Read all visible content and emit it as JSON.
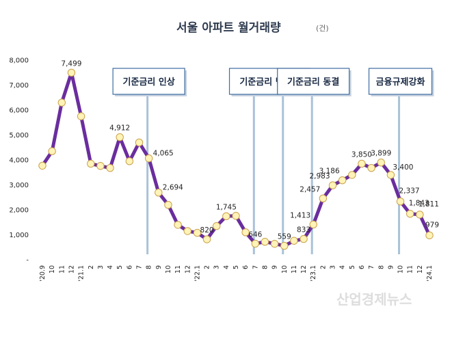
{
  "chart_data": {
    "type": "line",
    "title": "서울 아파트 월거래량",
    "unit": "(건)",
    "ylim": [
      0,
      8000
    ],
    "yticks": [
      "-",
      "1,000",
      "2,000",
      "3,000",
      "4,000",
      "5,000",
      "6,000",
      "7,000",
      "8,000"
    ],
    "x": [
      "'20.9",
      "10",
      "11",
      "12",
      "'21.1",
      "2",
      "3",
      "4",
      "5",
      "6",
      "7",
      "8",
      "9",
      "10",
      "11",
      "12",
      "'22.1",
      "2",
      "3",
      "4",
      "5",
      "6",
      "7",
      "8",
      "9",
      "10",
      "11",
      "12",
      "'23.1",
      "2",
      "3",
      "4",
      "5",
      "6",
      "7",
      "8",
      "9",
      "10",
      "11",
      "12",
      "'24.1"
    ],
    "values": [
      3770,
      4350,
      6300,
      7499,
      5750,
      3850,
      3760,
      3680,
      4912,
      3950,
      4700,
      4065,
      2694,
      2200,
      1400,
      1150,
      1080,
      820,
      1350,
      1745,
      1760,
      1100,
      646,
      720,
      640,
      559,
      760,
      833,
      1413,
      2457,
      2983,
      3186,
      3400,
      3850,
      3680,
      3899,
      3400,
      2337,
      1843,
      1811,
      979
    ],
    "data_labels": [
      {
        "index": 3,
        "text": "7,499"
      },
      {
        "index": 8,
        "text": "4,912"
      },
      {
        "index": 11,
        "text": "4,065"
      },
      {
        "index": 12,
        "text": "2,694"
      },
      {
        "index": 17,
        "text": "820"
      },
      {
        "index": 19,
        "text": "1,745"
      },
      {
        "index": 22,
        "text": "646"
      },
      {
        "index": 25,
        "text": "559"
      },
      {
        "index": 27,
        "text": "833"
      },
      {
        "index": 28,
        "text": "1,413"
      },
      {
        "index": 29,
        "text": "2,457"
      },
      {
        "index": 30,
        "text": "2,983"
      },
      {
        "index": 31,
        "text": "3,186"
      },
      {
        "index": 33,
        "text": "3,850"
      },
      {
        "index": 35,
        "text": "3,899"
      },
      {
        "index": 36,
        "text": "3,400"
      },
      {
        "index": 37,
        "text": "2,337"
      },
      {
        "index": 38,
        "text": "1,843"
      },
      {
        "index": 39,
        "text": "1,811"
      },
      {
        "index": 40,
        "text": "979"
      }
    ],
    "annotations": [
      {
        "name": "rate-hike",
        "text": "기준금리 인상",
        "index": 11
      },
      {
        "name": "rate-big-step",
        "text": "기준금리 빅스텝",
        "index": 22,
        "index2": 25
      },
      {
        "name": "rate-freeze",
        "text": "기준금리 동결",
        "index": 28
      },
      {
        "name": "loan-tightening",
        "text": "금융규제강화",
        "index": 37
      }
    ],
    "line_color": "#6a2d9e",
    "marker_color": "#fff3b8",
    "marker_stroke": "#c9a04a",
    "annotation_line_color": "#a9c2d8",
    "annotation_border_color": "#3c6aa0"
  },
  "watermark": "산업경제뉴스"
}
